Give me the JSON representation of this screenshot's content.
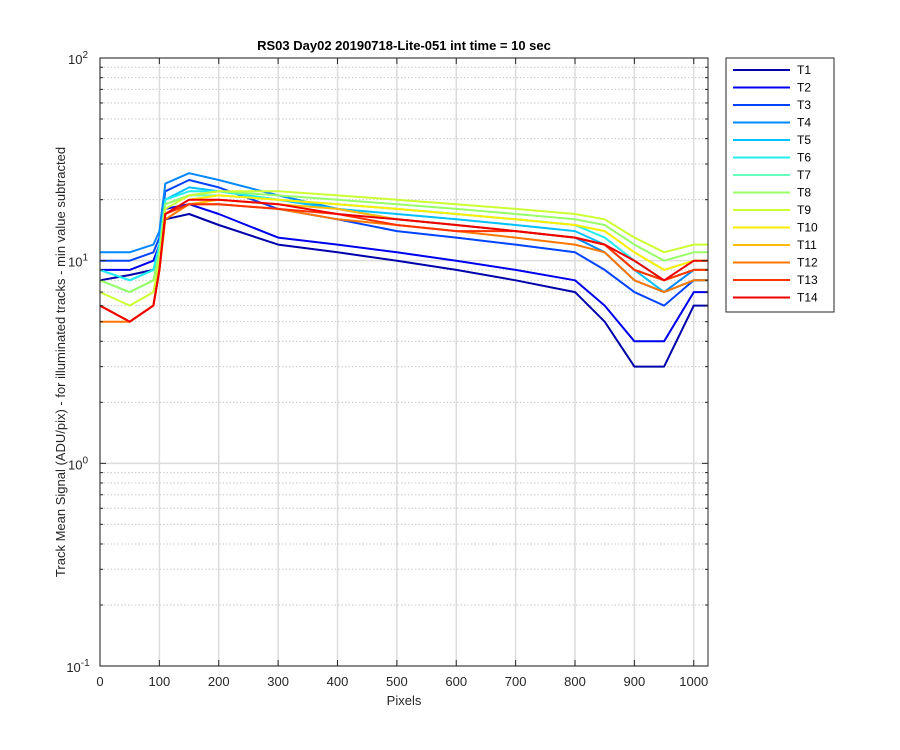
{
  "chart_data": {
    "type": "line",
    "title": "RS03 Day02 20190718-Lite-051 int time = 10 sec",
    "xlabel": "Pixels",
    "ylabel": "Track Mean Signal (ADU/pix) - for illuminated tracks - min value subtracted",
    "xlim": [
      0,
      1024
    ],
    "ylim": [
      0.1,
      100
    ],
    "yscale": "log",
    "grid": true,
    "legend_position": "outside-right",
    "x_ticks": [
      "0",
      "100",
      "200",
      "300",
      "400",
      "500",
      "600",
      "700",
      "800",
      "900",
      "1000"
    ],
    "y_ticks": [
      {
        "base": "10",
        "exp": "-1"
      },
      {
        "base": "10",
        "exp": "0"
      },
      {
        "base": "10",
        "exp": "1"
      },
      {
        "base": "10",
        "exp": "2"
      }
    ],
    "x": [
      0,
      50,
      90,
      100,
      110,
      150,
      200,
      300,
      400,
      500,
      600,
      700,
      800,
      850,
      900,
      950,
      1000,
      1024
    ],
    "series": [
      {
        "name": "T1",
        "color": "#0000aa",
        "values": [
          8,
          8.5,
          9,
          11,
          16,
          17,
          15,
          12,
          11,
          10,
          9,
          8,
          7,
          5,
          3,
          3,
          6,
          6
        ]
      },
      {
        "name": "T2",
        "color": "#0000ee",
        "values": [
          9,
          9,
          10,
          12,
          18,
          19,
          17,
          13,
          12,
          11,
          10,
          9,
          8,
          6,
          4,
          4,
          7,
          7
        ]
      },
      {
        "name": "T3",
        "color": "#0044ff",
        "values": [
          10,
          10,
          11,
          13,
          22,
          25,
          23,
          18,
          16,
          14,
          13,
          12,
          11,
          9,
          7,
          6,
          8,
          8
        ]
      },
      {
        "name": "T4",
        "color": "#0088ff",
        "values": [
          11,
          11,
          12,
          14,
          24,
          27,
          25,
          21,
          18,
          16,
          15,
          14,
          13,
          11,
          8,
          7,
          9,
          9
        ]
      },
      {
        "name": "T5",
        "color": "#00c0ff",
        "values": [
          9,
          8,
          9,
          12,
          20,
          23,
          22,
          20,
          18,
          17,
          16,
          15,
          14,
          12,
          9,
          7,
          8,
          8
        ]
      },
      {
        "name": "T6",
        "color": "#22eeee",
        "values": [
          9,
          8,
          9,
          12,
          20,
          22,
          22,
          20,
          19,
          18,
          17,
          16,
          15,
          13,
          10,
          8,
          9,
          9
        ]
      },
      {
        "name": "T7",
        "color": "#66ffbb",
        "values": [
          8,
          7,
          8,
          11,
          19,
          21,
          21,
          20,
          19,
          18,
          17,
          16,
          15,
          14,
          11,
          9,
          10,
          10
        ]
      },
      {
        "name": "T8",
        "color": "#99ff66",
        "values": [
          8,
          7,
          8,
          11,
          19,
          21,
          22,
          21,
          20,
          19,
          18,
          17,
          16,
          15,
          12,
          10,
          11,
          11
        ]
      },
      {
        "name": "T9",
        "color": "#ccff33",
        "values": [
          7,
          6,
          7,
          10,
          18,
          21,
          22,
          22,
          21,
          20,
          19,
          18,
          17,
          16,
          13,
          11,
          12,
          12
        ]
      },
      {
        "name": "T10",
        "color": "#ffee00",
        "values": [
          6,
          5,
          6,
          9,
          17,
          20,
          21,
          20,
          19,
          18,
          17,
          16,
          15,
          14,
          11,
          9,
          10,
          10
        ]
      },
      {
        "name": "T11",
        "color": "#ffbb00",
        "values": [
          6,
          5,
          6,
          9,
          16,
          19,
          20,
          19,
          18,
          16,
          15,
          14,
          13,
          12,
          9,
          8,
          9,
          9
        ]
      },
      {
        "name": "T12",
        "color": "#ff7700",
        "values": [
          5,
          5,
          6,
          9,
          16,
          19,
          19,
          18,
          16,
          15,
          14,
          13,
          12,
          11,
          8,
          7,
          8,
          8
        ]
      },
      {
        "name": "T13",
        "color": "#ff3300",
        "values": [
          6,
          5,
          6,
          9,
          17,
          19,
          19,
          18,
          17,
          15,
          14,
          14,
          13,
          12,
          9,
          8,
          9,
          9
        ]
      },
      {
        "name": "T14",
        "color": "#ee0000",
        "values": [
          6,
          5,
          6,
          9,
          17,
          20,
          20,
          19,
          17,
          16,
          15,
          14,
          13,
          12,
          10,
          8,
          10,
          10
        ]
      }
    ]
  }
}
